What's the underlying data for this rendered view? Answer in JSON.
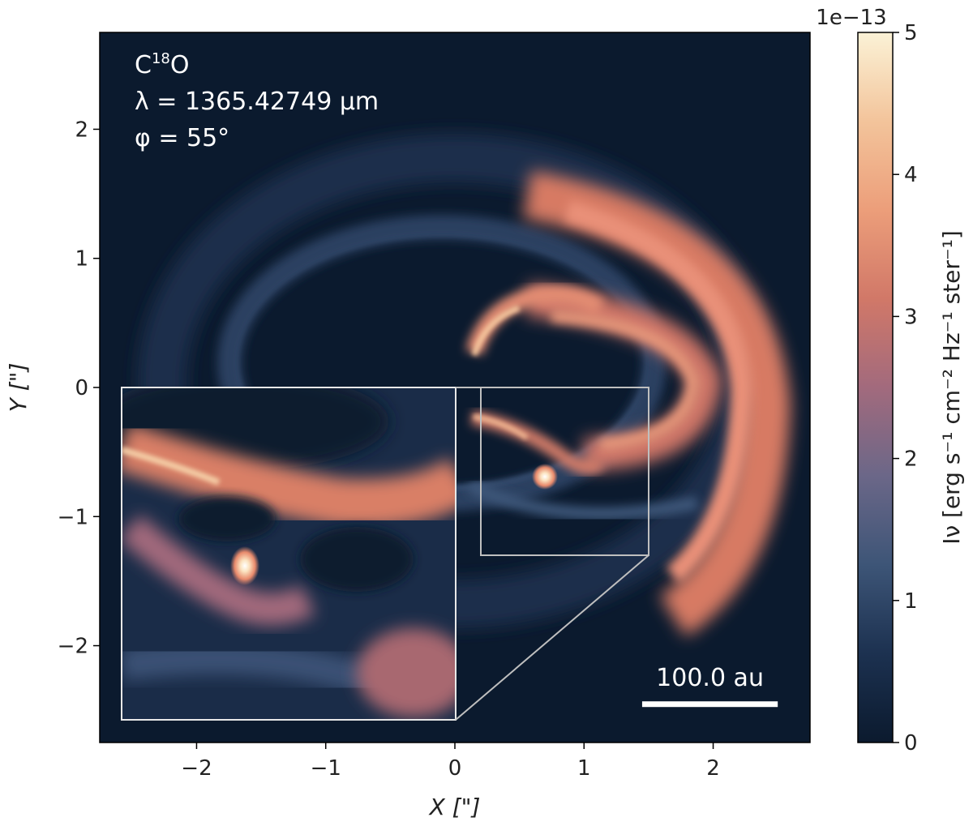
{
  "chart_data": {
    "type": "heatmap",
    "title": "",
    "xlabel": "X [\"]",
    "ylabel": "Y [\"]",
    "xlim": [
      -2.75,
      2.75
    ],
    "ylim": [
      -2.75,
      2.75
    ],
    "xticks": [
      -2,
      -1,
      0,
      1,
      2
    ],
    "yticks": [
      -2,
      -1,
      0,
      1,
      2
    ],
    "xtick_labels": [
      "−2",
      "−1",
      "0",
      "1",
      "2"
    ],
    "ytick_labels": [
      "−2",
      "−1",
      "0",
      "1",
      "2"
    ],
    "annotations": {
      "species_base": "C",
      "species_sup": "18",
      "species_tail": "O",
      "wavelength": "λ = 1365.42749 μm",
      "angle": "φ = 55°"
    },
    "scale_bar": {
      "label": "100.0 au",
      "x_start": 1.45,
      "x_end": 2.5,
      "y": -2.45
    },
    "inset": {
      "source_region": {
        "x": [
          0.2,
          1.5
        ],
        "y": [
          -1.3,
          0.0
        ]
      },
      "display_region": {
        "x": [
          -2.6,
          0.0
        ],
        "y": [
          -2.6,
          0.0
        ]
      }
    },
    "colorbar": {
      "label": "Iν [erg s⁻¹ cm⁻² Hz⁻¹ ster⁻¹]",
      "exponent": "1e−13",
      "vmin": 0,
      "vmax": 5,
      "ticks": [
        0,
        1,
        2,
        3,
        4,
        5
      ],
      "tick_labels": [
        "0",
        "1",
        "2",
        "3",
        "4",
        "5"
      ],
      "colors": [
        "#0b1a2e",
        "#1c3150",
        "#3d5577",
        "#6b6788",
        "#a26a7d",
        "#d17868",
        "#ec9e7a",
        "#f3c49b",
        "#fbf2d6"
      ]
    }
  }
}
